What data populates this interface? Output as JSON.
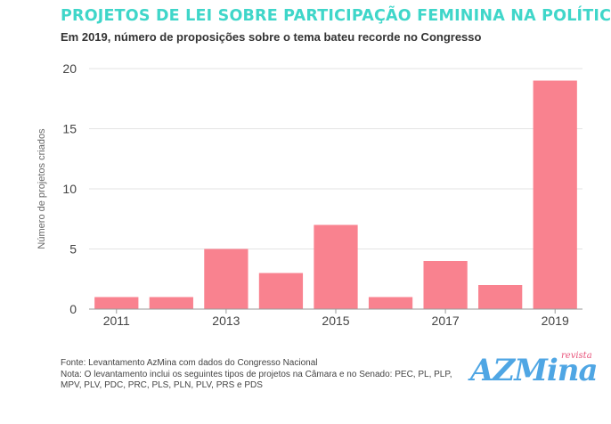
{
  "header": {
    "title": "Projetos de lei sobre participação feminina na política",
    "subtitle": "Em 2019, número de proposições sobre o tema bateu recorde no Congresso"
  },
  "footer": {
    "source": "Fonte: Levantamento AzMina com dados do Congresso Nacional",
    "note": "Nota: O levantamento inclui os seguintes tipos de projetos na Câmara e no Senado: PEC, PL, PLP, MPV, PLV, PDC, PRC, PLS, PLN, PLV, PRS e PDS"
  },
  "logo": {
    "main": "AZMina",
    "small": "revista"
  },
  "colors": {
    "bar": "#f9828f",
    "title": "#3fd6c9",
    "grid": "#e3e3e3",
    "axis": "#9a9a9a",
    "text": "#444444"
  },
  "chart_data": {
    "type": "bar",
    "categories": [
      "2011",
      "2012",
      "2013",
      "2014",
      "2015",
      "2016",
      "2017",
      "2018",
      "2019"
    ],
    "values": [
      1,
      1,
      5,
      3,
      7,
      1,
      4,
      2,
      19
    ],
    "x_tick_labels": [
      "2011",
      "",
      "2013",
      "",
      "2015",
      "",
      "2017",
      "",
      "2019"
    ],
    "ylabel": "Número de projetos criados",
    "ylim": [
      0,
      20
    ],
    "yticks": [
      0,
      5,
      10,
      15,
      20
    ],
    "grid": "horizontal",
    "legend": "none"
  }
}
